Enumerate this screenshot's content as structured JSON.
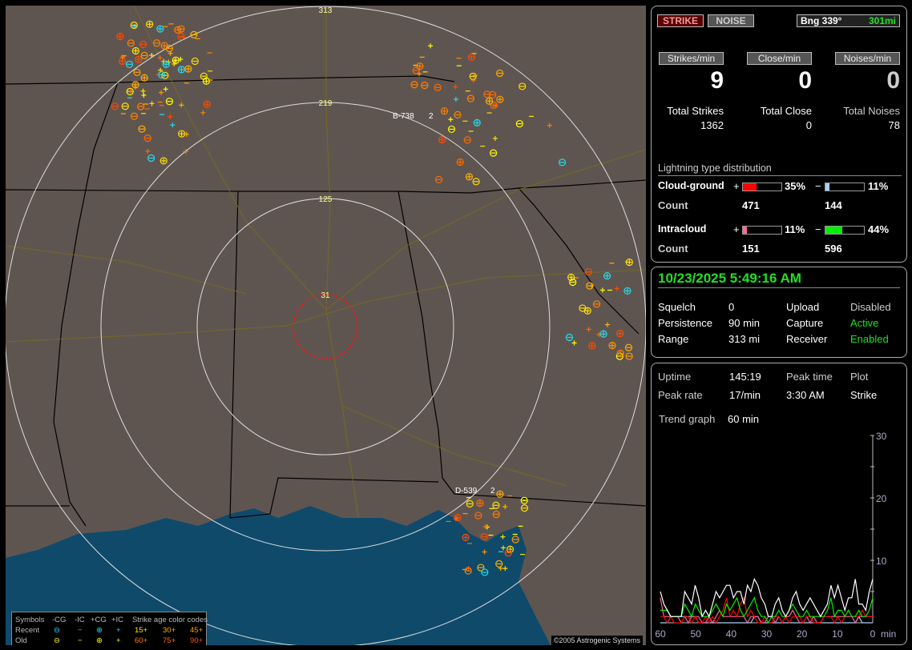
{
  "map": {
    "range_rings": [
      "31",
      "125",
      "219",
      "313"
    ],
    "labels": [
      "B-738",
      "2",
      "D-539",
      "2"
    ],
    "copyright": "©2005 Astrogenic Systems",
    "legend": {
      "symbols_label": "Symbols",
      "headers": [
        "-CG",
        "-IC",
        "+CG",
        "+IC"
      ],
      "age_title": "Strike age color codes",
      "recent_label": "Recent",
      "old_label": "Old",
      "recent_ages": [
        "15+",
        "30+",
        "45+"
      ],
      "old_ages": [
        "60+",
        "75+",
        "90+"
      ],
      "age_colors": [
        "#ffe000",
        "#ffb000",
        "#ff9a00",
        "#ff8000",
        "#ff6a00",
        "#ff4a00"
      ],
      "recent_color": "#22ddee",
      "old_color": "#ffff00"
    }
  },
  "top": {
    "strike_btn": "STRIKE",
    "noise_btn": "NOISE",
    "bearing": "Bng 339°",
    "distance": "301mi",
    "strikes_min_label": "Strikes/min",
    "close_min_label": "Close/min",
    "noises_min_label": "Noises/min",
    "strikes_min": "9",
    "close_min": "0",
    "noises_min": "0",
    "total_strikes_label": "Total Strikes",
    "total_close_label": "Total Close",
    "total_noises_label": "Total Noises",
    "total_strikes": "1362",
    "total_close": "0",
    "total_noises": "78"
  },
  "distribution": {
    "title": "Lightning type distribution",
    "cg_label": "Cloud-ground",
    "ic_label": "Intracloud",
    "count_label": "Count",
    "plus": "+",
    "minus": "−",
    "cg_pos_pct": "35%",
    "cg_pos_value": 35,
    "cg_pos_color": "#ff0000",
    "cg_neg_pct": "11%",
    "cg_neg_value": 11,
    "cg_neg_color": "#a8d0f0",
    "ic_pos_pct": "11%",
    "ic_pos_value": 11,
    "ic_pos_color": "#ff6699",
    "ic_neg_pct": "44%",
    "ic_neg_value": 44,
    "ic_neg_color": "#00ee00",
    "cg_pos_count": "471",
    "cg_neg_count": "144",
    "ic_pos_count": "151",
    "ic_neg_count": "596"
  },
  "status": {
    "datetime": "10/23/2025 5:49:16 AM",
    "squelch_label": "Squelch",
    "squelch": "0",
    "persistence_label": "Persistence",
    "persistence": "90 min",
    "range_label": "Range",
    "range": "313 mi",
    "upload_label": "Upload",
    "upload": "Disabled",
    "capture_label": "Capture",
    "capture": "Active",
    "receiver_label": "Receiver",
    "receiver": "Enabled"
  },
  "stats": {
    "uptime_label": "Uptime",
    "uptime": "145:19",
    "peak_rate_label": "Peak rate",
    "peak_rate": "17/min",
    "peak_time_label": "Peak time",
    "peak_time": "3:30 AM",
    "plot_label": "Plot",
    "plot": "Strike",
    "trend_label": "Trend graph",
    "trend": "60 min"
  },
  "chart_data": {
    "type": "line",
    "xlabel": "min",
    "x_ticks": [
      "60",
      "50",
      "40",
      "30",
      "20",
      "10",
      "0"
    ],
    "y_ticks": [
      "10",
      "20",
      "30"
    ],
    "xlim": [
      60,
      0
    ],
    "ylim": [
      0,
      30
    ],
    "series_colors": [
      "#ffffff",
      "#00ee00",
      "#ff0000",
      "#ff6699",
      "#a8d0f0"
    ],
    "series": [
      {
        "values": [
          5,
          3,
          2,
          1,
          1,
          1,
          1,
          5,
          4,
          3,
          6,
          4,
          1,
          2,
          1,
          3,
          5,
          4,
          5,
          6,
          6,
          4,
          5,
          5,
          3,
          6,
          5,
          7,
          6,
          4,
          3,
          1,
          1,
          3,
          4,
          2,
          1,
          2,
          4,
          5,
          3,
          2,
          3,
          4,
          3,
          2,
          1,
          2,
          3,
          6,
          4,
          6,
          4,
          2,
          4,
          4,
          7,
          3,
          3,
          2,
          5,
          7
        ]
      },
      {
        "values": [
          2,
          2,
          2,
          1,
          1,
          1,
          1,
          3,
          2,
          1,
          3,
          2,
          1,
          1,
          1,
          2,
          3,
          2,
          1,
          3,
          2,
          3,
          4,
          2,
          1,
          2,
          3,
          4,
          2,
          1,
          1,
          0,
          1,
          1,
          2,
          1,
          1,
          2,
          3,
          2,
          1,
          1,
          2,
          1,
          1,
          1,
          1,
          1,
          2,
          4,
          1,
          2,
          2,
          1,
          2,
          1,
          1,
          2,
          1,
          1,
          2,
          4
        ]
      },
      {
        "values": [
          1,
          1,
          0,
          1,
          0,
          0,
          0,
          1,
          1,
          0,
          1,
          0,
          0,
          1,
          0,
          1,
          0,
          1,
          2,
          4,
          1,
          2,
          1,
          3,
          4,
          1,
          2,
          1,
          0,
          0,
          1,
          0,
          0,
          1,
          1,
          0,
          1,
          0,
          1,
          1,
          1,
          0,
          1,
          1,
          0,
          0,
          0,
          1,
          1,
          1,
          0,
          1,
          0,
          1,
          2,
          1,
          1,
          1,
          2,
          1,
          1,
          1
        ]
      },
      {
        "values": [
          4,
          1,
          1,
          1,
          1,
          1,
          0,
          1,
          0,
          1,
          1,
          1,
          0,
          0,
          1,
          0,
          1,
          2,
          1,
          1,
          1,
          1,
          1,
          1,
          1,
          0,
          1,
          1,
          1,
          0,
          0,
          1,
          1,
          0,
          1,
          0,
          1,
          1,
          2,
          1,
          0,
          0,
          1,
          0,
          1,
          0,
          0,
          1,
          1,
          1,
          1,
          1,
          1,
          1,
          1,
          1,
          0,
          1,
          1,
          1,
          1,
          1
        ]
      },
      {
        "values": [
          0,
          0,
          0,
          1,
          1,
          1,
          1,
          1,
          1,
          1,
          1,
          0,
          0,
          0,
          0,
          0,
          0,
          0,
          0,
          0,
          0,
          0,
          0,
          0,
          0,
          0,
          0,
          1,
          1,
          0,
          0,
          0,
          0,
          0,
          0,
          0,
          0,
          0,
          0,
          0,
          0,
          0,
          0,
          0,
          0,
          0,
          0,
          0,
          0,
          0,
          0,
          0,
          0,
          0,
          0,
          0,
          0,
          1,
          0,
          0,
          0,
          0
        ]
      }
    ]
  }
}
